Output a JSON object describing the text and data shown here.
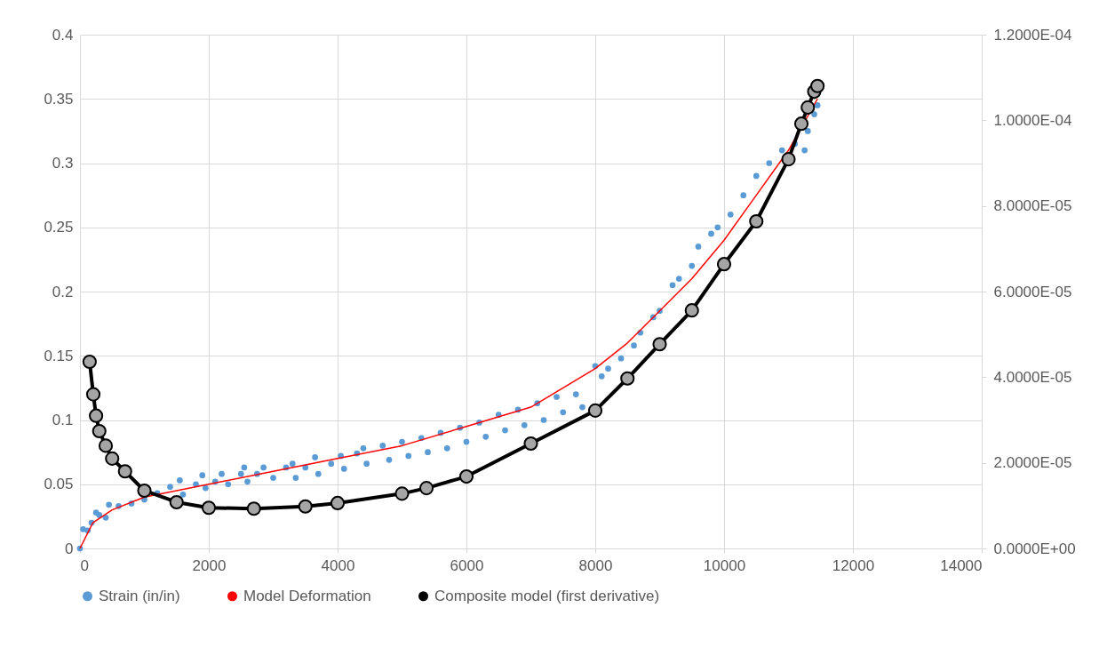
{
  "chart_data": {
    "type": "scatter",
    "xlim": [
      0,
      14000
    ],
    "xticks": [
      0,
      2000,
      4000,
      6000,
      8000,
      10000,
      12000,
      14000
    ],
    "ylim": [
      0,
      0.4
    ],
    "yticks": [
      0,
      0.05,
      0.1,
      0.15,
      0.2,
      0.25,
      0.3,
      0.35,
      0.4
    ],
    "y2lim": [
      0,
      0.00012
    ],
    "y2ticks": [
      {
        "value": 0,
        "label": "0.0000E+00"
      },
      {
        "value": 2e-05,
        "label": "2.0000E-05"
      },
      {
        "value": 4e-05,
        "label": "4.0000E-05"
      },
      {
        "value": 6e-05,
        "label": "6.0000E-05"
      },
      {
        "value": 8e-05,
        "label": "8.0000E-05"
      },
      {
        "value": 0.0001,
        "label": "1.0000E-04"
      },
      {
        "value": 0.00012,
        "label": "1.2000E-04"
      }
    ],
    "grid": true,
    "legend": "bottom",
    "series": [
      {
        "name": "Strain (in/in)",
        "color": "#5b9bd5",
        "x": [
          0,
          50,
          120,
          180,
          250,
          300,
          400,
          450,
          600,
          800,
          1000,
          1200,
          1400,
          1550,
          1600,
          1800,
          1900,
          1950,
          2100,
          2200,
          2300,
          2500,
          2550,
          2600,
          2750,
          2850,
          3000,
          3200,
          3300,
          3350,
          3500,
          3650,
          3700,
          3900,
          4050,
          4100,
          4300,
          4400,
          4450,
          4700,
          4800,
          5000,
          5100,
          5300,
          5400,
          5600,
          5700,
          5900,
          6000,
          6200,
          6300,
          6500,
          6600,
          6800,
          6900,
          7100,
          7200,
          7400,
          7500,
          7700,
          7800,
          8000,
          8100,
          8200,
          8400,
          8600,
          8700,
          8900,
          9000,
          9200,
          9300,
          9500,
          9600,
          9800,
          9900,
          10100,
          10300,
          10500,
          10700,
          10900,
          11100,
          11250,
          11300,
          11400,
          11450
        ],
        "values": [
          0,
          0.015,
          0.014,
          0.02,
          0.028,
          0.026,
          0.024,
          0.034,
          0.033,
          0.035,
          0.038,
          0.043,
          0.048,
          0.053,
          0.042,
          0.05,
          0.057,
          0.047,
          0.052,
          0.058,
          0.05,
          0.058,
          0.063,
          0.052,
          0.058,
          0.063,
          0.055,
          0.063,
          0.066,
          0.055,
          0.063,
          0.071,
          0.058,
          0.066,
          0.072,
          0.062,
          0.074,
          0.078,
          0.066,
          0.08,
          0.069,
          0.083,
          0.072,
          0.086,
          0.075,
          0.09,
          0.078,
          0.094,
          0.083,
          0.098,
          0.087,
          0.104,
          0.092,
          0.108,
          0.096,
          0.113,
          0.1,
          0.118,
          0.106,
          0.12,
          0.11,
          0.142,
          0.134,
          0.14,
          0.148,
          0.158,
          0.168,
          0.18,
          0.185,
          0.205,
          0.21,
          0.22,
          0.235,
          0.245,
          0.25,
          0.26,
          0.275,
          0.29,
          0.3,
          0.31,
          0.315,
          0.31,
          0.325,
          0.338,
          0.345
        ]
      },
      {
        "name": "Model Deformation",
        "type": "line",
        "color": "#ff0000",
        "x": [
          0,
          200,
          500,
          1000,
          2000,
          3000,
          4000,
          5000,
          6000,
          7000,
          8000,
          8500,
          9000,
          9500,
          10000,
          10500,
          11000,
          11450
        ],
        "values": [
          0,
          0.02,
          0.03,
          0.04,
          0.05,
          0.06,
          0.07,
          0.08,
          0.095,
          0.11,
          0.14,
          0.16,
          0.185,
          0.21,
          0.24,
          0.275,
          0.31,
          0.35
        ]
      },
      {
        "name": "Composite model (first derivative)",
        "type": "line",
        "axis": "y2",
        "marker": "circle",
        "color": "#000000",
        "x": [
          150,
          207,
          250,
          300,
          400,
          500,
          700,
          1000,
          1500,
          2000,
          2700,
          3500,
          4000,
          5000,
          5380,
          6000,
          7000,
          8000,
          8500,
          9000,
          9500,
          10000,
          10500,
          11000,
          11200,
          11300,
          11400,
          11450
        ],
        "values": [
          4.36e-05,
          3.6e-05,
          3.1e-05,
          2.74e-05,
          2.4e-05,
          2.1e-05,
          1.8e-05,
          1.35e-05,
          1.08e-05,
          9.5e-06,
          9.3e-06,
          9.8e-06,
          1.06e-05,
          1.28e-05,
          1.41e-05,
          1.68e-05,
          2.45e-05,
          3.22e-05,
          3.97e-05,
          4.77e-05,
          5.56e-05,
          6.64e-05,
          7.64e-05,
          9.09e-05,
          9.92e-05,
          0.000103,
          0.0001067,
          0.000108
        ]
      }
    ]
  }
}
